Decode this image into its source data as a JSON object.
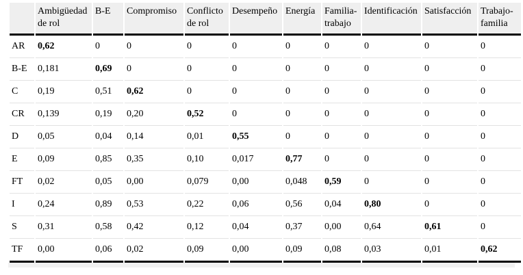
{
  "table": {
    "columns": [
      "",
      "Ambigüedad de rol",
      "B-E",
      "Compromiso",
      "Conflicto de rol",
      "Desempeño",
      "Energía",
      "Familia-trabajo",
      "Identificación",
      "Satisfacción",
      "Trabajo-familia"
    ],
    "rows": [
      {
        "label": "AR",
        "values": [
          "0,62",
          "0",
          "0",
          "0",
          "0",
          "0",
          "0",
          "0",
          "0",
          "0"
        ],
        "bold_index": 0
      },
      {
        "label": "B-E",
        "values": [
          "0,181",
          "0,69",
          "0",
          "0",
          "0",
          "0",
          "0",
          "0",
          "0",
          "0"
        ],
        "bold_index": 1
      },
      {
        "label": "C",
        "values": [
          "0,19",
          "0,51",
          "0,62",
          "0",
          "0",
          "0",
          "0",
          "0",
          "0",
          "0"
        ],
        "bold_index": 2
      },
      {
        "label": "CR",
        "values": [
          "0,139",
          "0,19",
          "0,20",
          "0,52",
          "0",
          "0",
          "0",
          "0",
          "0",
          "0"
        ],
        "bold_index": 3
      },
      {
        "label": "D",
        "values": [
          "0,05",
          "0,04",
          "0,14",
          "0,01",
          "0,55",
          "0",
          "0",
          "0",
          "0",
          "0"
        ],
        "bold_index": 4
      },
      {
        "label": "E",
        "values": [
          "0,09",
          "0,85",
          "0,35",
          "0,10",
          "0,017",
          "0,77",
          "0",
          "0",
          "0",
          "0"
        ],
        "bold_index": 5
      },
      {
        "label": "FT",
        "values": [
          "0,02",
          "0,05",
          "0,00",
          "0,079",
          "0,00",
          "0,048",
          "0,59",
          "0",
          "0",
          "0"
        ],
        "bold_index": 6
      },
      {
        "label": "I",
        "values": [
          "0,24",
          "0,89",
          "0,53",
          "0,22",
          "0,06",
          "0,56",
          "0,04",
          "0,80",
          "0",
          "0"
        ],
        "bold_index": 7
      },
      {
        "label": "S",
        "values": [
          "0,31",
          "0,58",
          "0,42",
          "0,12",
          "0,04",
          "0,37",
          "0,00",
          "0,64",
          "0,61",
          "0"
        ],
        "bold_index": 8
      },
      {
        "label": "TF",
        "values": [
          "0,00",
          "0,06",
          "0,02",
          "0,09",
          "0,00",
          "0,09",
          "0,08",
          "0,03",
          "0,01",
          "0,62"
        ],
        "bold_index": 9
      }
    ],
    "colors": {
      "header_bg": "#efefef",
      "grid_line": "#e2e2e2",
      "rule": "#000000"
    }
  },
  "chart_data": {
    "type": "table",
    "title": "",
    "columns": [
      "",
      "Ambigüedad de rol",
      "B-E",
      "Compromiso",
      "Conflicto de rol",
      "Desempeño",
      "Energía",
      "Familia-trabajo",
      "Identificación",
      "Satisfacción",
      "Trabajo-familia"
    ],
    "rows": [
      [
        "AR",
        "0,62",
        "0",
        "0",
        "0",
        "0",
        "0",
        "0",
        "0",
        "0",
        "0"
      ],
      [
        "B-E",
        "0,181",
        "0,69",
        "0",
        "0",
        "0",
        "0",
        "0",
        "0",
        "0",
        "0"
      ],
      [
        "C",
        "0,19",
        "0,51",
        "0,62",
        "0",
        "0",
        "0",
        "0",
        "0",
        "0",
        "0"
      ],
      [
        "CR",
        "0,139",
        "0,19",
        "0,20",
        "0,52",
        "0",
        "0",
        "0",
        "0",
        "0",
        "0"
      ],
      [
        "D",
        "0,05",
        "0,04",
        "0,14",
        "0,01",
        "0,55",
        "0",
        "0",
        "0",
        "0",
        "0"
      ],
      [
        "E",
        "0,09",
        "0,85",
        "0,35",
        "0,10",
        "0,017",
        "0,77",
        "0",
        "0",
        "0",
        "0"
      ],
      [
        "FT",
        "0,02",
        "0,05",
        "0,00",
        "0,079",
        "0,00",
        "0,048",
        "0,59",
        "0",
        "0",
        "0"
      ],
      [
        "I",
        "0,24",
        "0,89",
        "0,53",
        "0,22",
        "0,06",
        "0,56",
        "0,04",
        "0,80",
        "0",
        "0"
      ],
      [
        "S",
        "0,31",
        "0,58",
        "0,42",
        "0,12",
        "0,04",
        "0,37",
        "0,00",
        "0,64",
        "0,61",
        "0"
      ],
      [
        "TF",
        "0,00",
        "0,06",
        "0,02",
        "0,09",
        "0,00",
        "0,09",
        "0,08",
        "0,03",
        "0,01",
        "0,62"
      ]
    ],
    "notes": "Diagonal values are bold (square root of AVE style matrix); decimal comma formatting"
  }
}
